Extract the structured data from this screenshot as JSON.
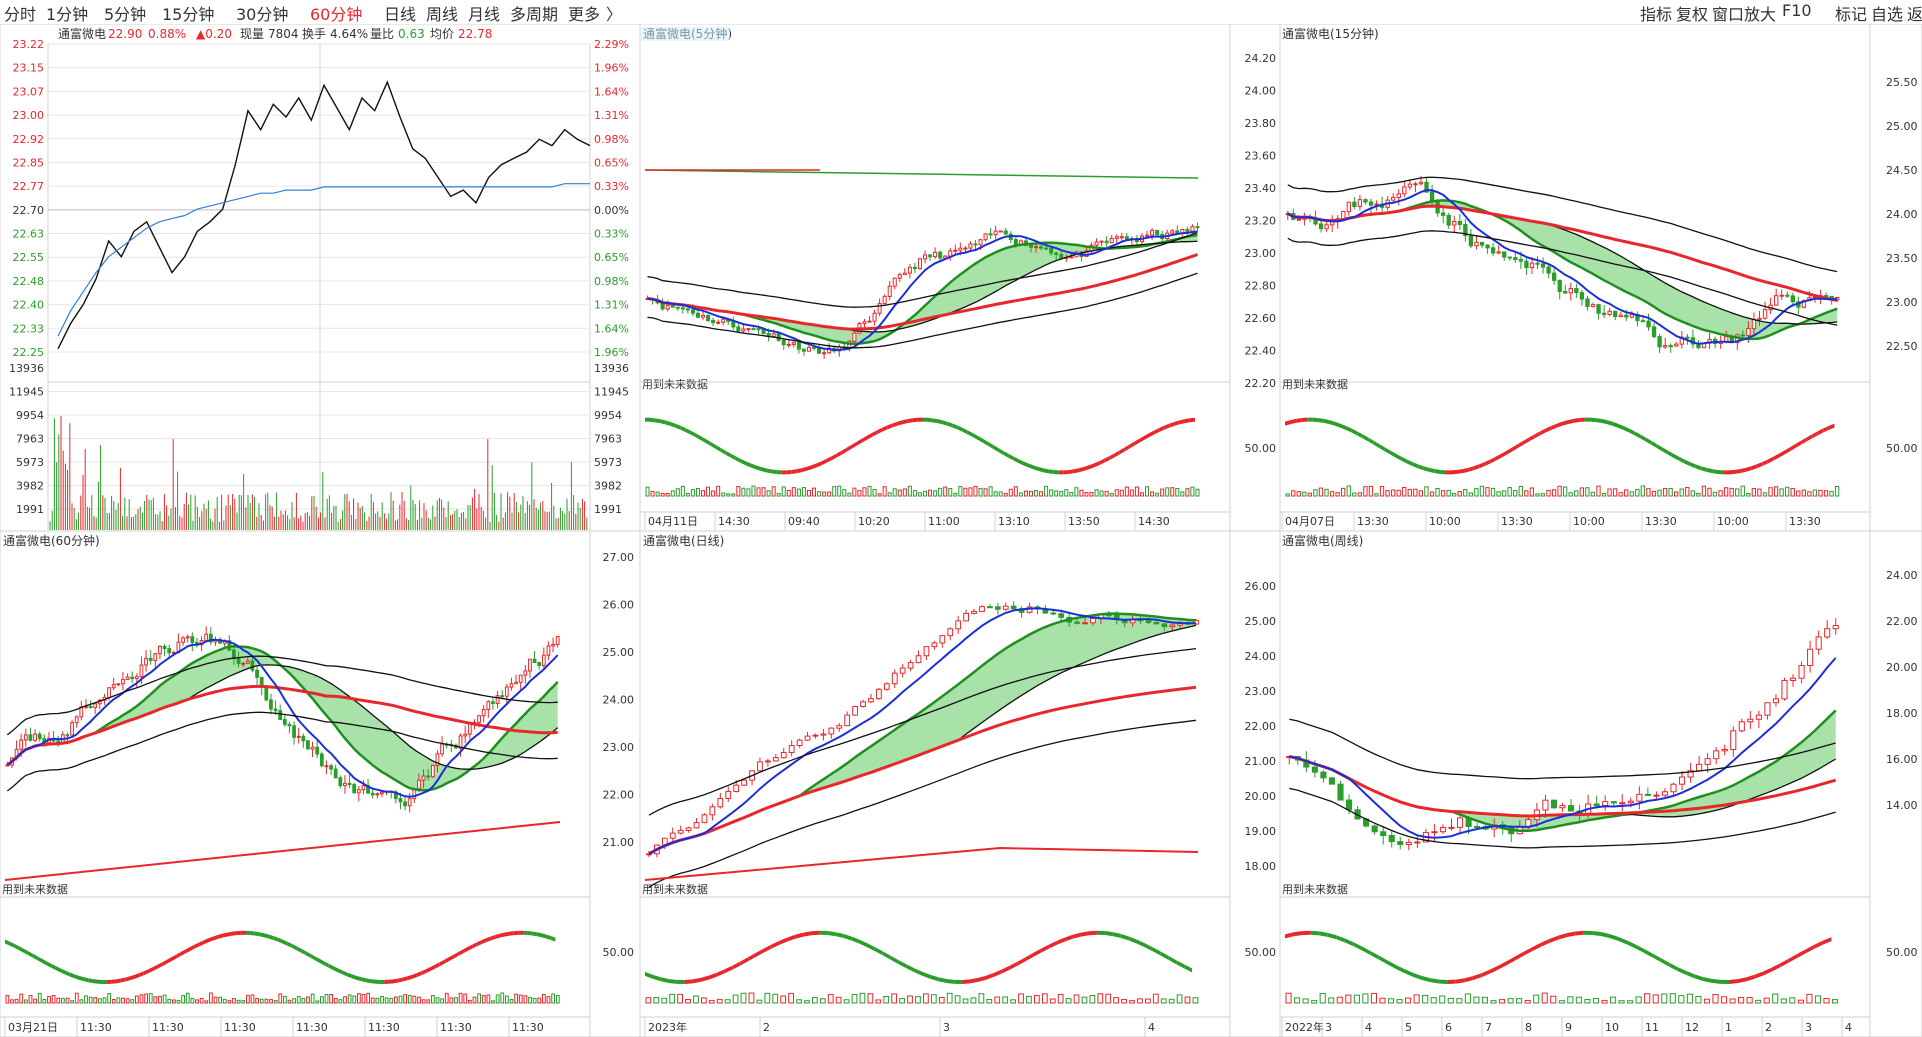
{
  "toolbar": {
    "timeframes": [
      "分时",
      "1分钟",
      "5分钟",
      "15分钟",
      "30分钟",
      "60分钟",
      "日线",
      "周线",
      "月线",
      "多周期",
      "更多"
    ],
    "active_index": 5,
    "right_items": [
      "指标",
      "复权",
      "窗口放大",
      "F10",
      "标记",
      "自选",
      "返回"
    ]
  },
  "colors": {
    "up": "#e8272c",
    "down": "#2a9d2a",
    "avg": "#2f7fd8",
    "price": "#111111",
    "grid": "#e6e6e6",
    "band_green": "#8bd88b",
    "band_cyan": "#a6e3ea"
  },
  "chart_data": [
    {
      "type": "line",
      "panel": "intraday",
      "title": "通富微电",
      "header": {
        "price": "22.90",
        "pct": "0.88%",
        "chg": "▲0.20",
        "vol_label": "现量",
        "vol": "7804",
        "turnover_label": "换手",
        "turnover": "4.64%",
        "ratio_label": "量比",
        "ratio": "0.63",
        "avg_label": "均价",
        "avg": "22.78"
      },
      "price_ticks": [
        "23.22",
        "23.15",
        "23.07",
        "23.00",
        "22.92",
        "22.85",
        "22.77",
        "22.70",
        "22.63",
        "22.55",
        "22.48",
        "22.40",
        "22.33",
        "22.25"
      ],
      "pct_ticks": [
        "2.29%",
        "1.96%",
        "1.64%",
        "1.31%",
        "0.98%",
        "0.65%",
        "0.33%",
        "0.00%",
        "0.33%",
        "0.65%",
        "0.98%",
        "1.31%",
        "1.64%",
        "1.96%"
      ],
      "vol_ticks": [
        "13936",
        "11945",
        "9954",
        "7963",
        "5973",
        "3982",
        "1991"
      ],
      "ylim": [
        22.25,
        23.22
      ],
      "price": [
        22.26,
        22.34,
        22.4,
        22.48,
        22.6,
        22.55,
        22.63,
        22.66,
        22.58,
        22.5,
        22.55,
        22.63,
        22.66,
        22.7,
        22.84,
        23.01,
        22.95,
        23.03,
        22.99,
        23.05,
        22.98,
        23.09,
        23.02,
        22.95,
        23.05,
        23.01,
        23.1,
        22.99,
        22.89,
        22.86,
        22.8,
        22.74,
        22.76,
        22.72,
        22.8,
        22.84,
        22.86,
        22.88,
        22.92,
        22.9,
        22.95,
        22.92,
        22.9
      ],
      "avg": [
        22.3,
        22.38,
        22.44,
        22.5,
        22.55,
        22.58,
        22.61,
        22.64,
        22.66,
        22.67,
        22.68,
        22.7,
        22.71,
        22.72,
        22.73,
        22.74,
        22.75,
        22.75,
        22.76,
        22.76,
        22.76,
        22.77,
        22.77,
        22.77,
        22.77,
        22.77,
        22.77,
        22.77,
        22.77,
        22.77,
        22.77,
        22.77,
        22.77,
        22.77,
        22.77,
        22.77,
        22.77,
        22.77,
        22.77,
        22.77,
        22.78,
        22.78,
        22.78
      ]
    },
    {
      "type": "candlestick",
      "panel": "5min",
      "title": "通富微电(5分钟)",
      "y_ticks": [],
      "x_ticks": [
        "04月11日",
        "14:30",
        "09:40",
        "10:20",
        "11:00",
        "13:10",
        "13:50",
        "14:30"
      ],
      "sub_label": "用到未来数据"
    },
    {
      "type": "candlestick",
      "panel": "15min",
      "title": "通富微电(15分钟)",
      "y_ticks": [
        "24.20",
        "24.00",
        "23.80",
        "23.60",
        "23.40",
        "23.20",
        "23.00",
        "22.80",
        "22.60",
        "22.40",
        "22.20"
      ],
      "right_ticks": [
        "25.50",
        "25.00",
        "24.50",
        "24.00",
        "23.50",
        "23.00",
        "22.50"
      ],
      "sub_tick": "50.00",
      "x_ticks": [
        "04月07日",
        "13:30",
        "10:00",
        "13:30",
        "10:00",
        "13:30",
        "10:00",
        "13:30"
      ],
      "sub_label": "用到未来数据"
    },
    {
      "type": "candlestick",
      "panel": "60min",
      "title": "通富微电(60分钟)",
      "x_ticks": [
        "03月21日",
        "11:30",
        "11:30",
        "11:30",
        "11:30",
        "11:30",
        "11:30",
        "11:30"
      ],
      "sub_label": "用到未来数据"
    },
    {
      "type": "candlestick",
      "panel": "daily",
      "title": "通富微电(日线)",
      "y_ticks": [
        "27.00",
        "26.00",
        "25.00",
        "24.00",
        "23.00",
        "22.00",
        "21.00"
      ],
      "sub_tick": "50.00",
      "x_ticks": [
        "2023年",
        "2",
        "3",
        "4"
      ],
      "sub_label": "用到未来数据"
    },
    {
      "type": "candlestick",
      "panel": "weekly",
      "title": "通富微电(周线)",
      "y_ticks": [
        "26.00",
        "25.00",
        "24.00",
        "23.00",
        "22.00",
        "21.00",
        "20.00",
        "19.00",
        "18.00"
      ],
      "right_ticks": [
        "24.00",
        "22.00",
        "20.00",
        "18.00",
        "16.00",
        "14.00"
      ],
      "sub_tick": "50.00",
      "x_ticks": [
        "2022年",
        "3",
        "4",
        "5",
        "6",
        "7",
        "8",
        "9",
        "10",
        "11",
        "12",
        "1",
        "2",
        "3",
        "4"
      ],
      "sub_label": "用到未来数据"
    }
  ]
}
